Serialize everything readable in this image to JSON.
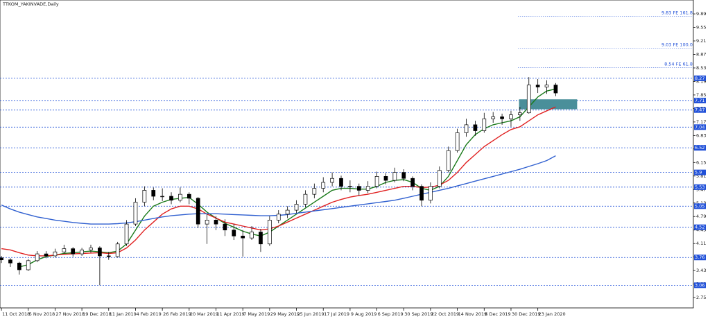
{
  "chart_data": {
    "type": "candlestick",
    "title": "TTKOM_YAKINVADE,Daily",
    "xlim": [
      -0.16,
      77.4
    ],
    "ylim": [
      2.49,
      10.24
    ],
    "xticks": [
      {
        "value": 0,
        "label": "11 Oct 2018"
      },
      {
        "value": 3,
        "label": "5 Nov 2018"
      },
      {
        "value": 6,
        "label": "27 Nov 2018"
      },
      {
        "value": 9,
        "label": "19 Dec 2018"
      },
      {
        "value": 12,
        "label": "11 Jan 2019"
      },
      {
        "value": 15,
        "label": "4 Feb 2019"
      },
      {
        "value": 18,
        "label": "26 Feb 2019"
      },
      {
        "value": 21,
        "label": "20 Mar 2019"
      },
      {
        "value": 24,
        "label": "11 Apr 2019"
      },
      {
        "value": 27,
        "label": "7 May 2019"
      },
      {
        "value": 30,
        "label": "29 May 2019"
      },
      {
        "value": 33,
        "label": "25 Jun 2019"
      },
      {
        "value": 36,
        "label": "17 Jul 2019"
      },
      {
        "value": 39,
        "label": "9 Aug 2019"
      },
      {
        "value": 42,
        "label": "6 Sep 2019"
      },
      {
        "value": 45,
        "label": "30 Sep 2019"
      },
      {
        "value": 48,
        "label": "22 Oct 2019"
      },
      {
        "value": 51,
        "label": "14 Nov 2019"
      },
      {
        "value": 54,
        "label": "6 Dec 2019"
      },
      {
        "value": 57,
        "label": "30 Dec 2019"
      },
      {
        "value": 60,
        "label": "23 Jan 2020"
      }
    ],
    "yticks": [
      2.75,
      3.09,
      3.43,
      3.77,
      4.11,
      4.45,
      4.79,
      5.13,
      5.47,
      5.81,
      6.15,
      6.49,
      6.83,
      7.17,
      7.51,
      7.85,
      8.19,
      8.53,
      8.87,
      9.21,
      9.55,
      9.89
    ],
    "candles": [
      [
        3.75,
        3.8,
        3.62,
        3.7
      ],
      [
        3.7,
        3.74,
        3.52,
        3.62
      ],
      [
        3.62,
        3.65,
        3.33,
        3.45
      ],
      [
        3.45,
        3.72,
        3.42,
        3.68
      ],
      [
        3.68,
        3.92,
        3.64,
        3.85
      ],
      [
        3.85,
        3.92,
        3.74,
        3.8
      ],
      [
        3.8,
        3.98,
        3.76,
        3.9
      ],
      [
        3.9,
        4.08,
        3.86,
        3.98
      ],
      [
        3.98,
        4.02,
        3.78,
        3.85
      ],
      [
        3.85,
        4.0,
        3.8,
        3.95
      ],
      [
        3.95,
        4.08,
        3.88,
        4.0
      ],
      [
        4.0,
        4.04,
        3.06,
        3.8
      ],
      [
        3.8,
        3.9,
        3.7,
        3.78
      ],
      [
        3.78,
        4.15,
        3.76,
        4.1
      ],
      [
        4.1,
        4.7,
        4.05,
        4.6
      ],
      [
        4.6,
        5.25,
        4.55,
        5.15
      ],
      [
        5.15,
        5.55,
        5.05,
        5.45
      ],
      [
        5.45,
        5.52,
        5.2,
        5.3
      ],
      [
        5.3,
        5.5,
        5.18,
        5.3
      ],
      [
        5.3,
        5.4,
        5.1,
        5.2
      ],
      [
        5.2,
        5.52,
        5.15,
        5.35
      ],
      [
        5.35,
        5.4,
        5.1,
        5.25
      ],
      [
        5.25,
        5.28,
        4.5,
        4.6
      ],
      [
        4.6,
        4.85,
        4.1,
        4.7
      ],
      [
        4.7,
        4.8,
        4.45,
        4.6
      ],
      [
        4.6,
        4.72,
        4.3,
        4.45
      ],
      [
        4.45,
        4.6,
        4.2,
        4.3
      ],
      [
        4.3,
        4.45,
        3.78,
        4.25
      ],
      [
        4.25,
        4.55,
        4.2,
        4.4
      ],
      [
        4.4,
        4.48,
        3.9,
        4.1
      ],
      [
        4.1,
        4.8,
        4.05,
        4.7
      ],
      [
        4.7,
        4.95,
        4.62,
        4.85
      ],
      [
        4.85,
        5.05,
        4.75,
        4.95
      ],
      [
        4.95,
        5.2,
        4.88,
        5.1
      ],
      [
        5.1,
        5.45,
        5.02,
        5.35
      ],
      [
        5.35,
        5.62,
        5.25,
        5.5
      ],
      [
        5.5,
        5.78,
        5.4,
        5.65
      ],
      [
        5.65,
        5.9,
        5.55,
        5.75
      ],
      [
        5.75,
        5.82,
        5.45,
        5.55
      ],
      [
        5.55,
        5.7,
        5.4,
        5.55
      ],
      [
        5.55,
        5.62,
        5.32,
        5.45
      ],
      [
        5.45,
        5.68,
        5.38,
        5.55
      ],
      [
        5.55,
        5.92,
        5.5,
        5.8
      ],
      [
        5.8,
        5.88,
        5.6,
        5.7
      ],
      [
        5.7,
        6.02,
        5.65,
        5.9
      ],
      [
        5.9,
        5.98,
        5.68,
        5.75
      ],
      [
        5.75,
        5.8,
        5.45,
        5.55
      ],
      [
        5.55,
        5.6,
        5.05,
        5.2
      ],
      [
        5.2,
        5.65,
        5.12,
        5.55
      ],
      [
        5.55,
        6.05,
        5.5,
        5.95
      ],
      [
        5.95,
        6.55,
        5.9,
        6.45
      ],
      [
        6.45,
        7.0,
        6.4,
        6.9
      ],
      [
        6.9,
        7.25,
        6.8,
        7.1
      ],
      [
        7.1,
        7.2,
        6.82,
        6.95
      ],
      [
        6.95,
        7.4,
        6.9,
        7.25
      ],
      [
        7.25,
        7.42,
        7.15,
        7.3
      ],
      [
        7.3,
        7.38,
        7.1,
        7.25
      ],
      [
        7.25,
        7.45,
        7.05,
        7.35
      ],
      [
        7.35,
        7.55,
        7.2,
        7.4
      ],
      [
        7.4,
        8.3,
        7.38,
        8.1
      ],
      [
        8.1,
        8.25,
        7.9,
        8.05
      ],
      [
        8.05,
        8.22,
        7.88,
        8.1
      ],
      [
        8.1,
        8.15,
        7.82,
        7.9
      ]
    ],
    "series": [
      {
        "color": "#1a7a1a",
        "values": [
          null,
          null,
          3.52,
          3.58,
          3.7,
          3.78,
          3.82,
          3.86,
          3.88,
          3.9,
          3.92,
          3.9,
          3.88,
          3.92,
          4.1,
          4.45,
          4.8,
          5.05,
          5.15,
          5.22,
          5.25,
          5.27,
          5.1,
          4.9,
          4.75,
          4.62,
          4.52,
          4.42,
          4.35,
          4.3,
          4.4,
          4.55,
          4.7,
          4.85,
          5.0,
          5.15,
          5.3,
          5.45,
          5.5,
          5.5,
          5.48,
          5.48,
          5.55,
          5.65,
          5.7,
          5.72,
          5.65,
          5.5,
          5.45,
          5.55,
          5.8,
          6.2,
          6.6,
          6.85,
          7.0,
          7.1,
          7.15,
          7.2,
          7.3,
          7.55,
          7.8,
          7.95,
          8.0
        ]
      },
      {
        "color": "#e02020",
        "values": [
          3.98,
          3.95,
          3.88,
          3.82,
          3.8,
          3.8,
          3.82,
          3.84,
          3.85,
          3.86,
          3.87,
          3.88,
          3.86,
          3.88,
          4.0,
          4.2,
          4.45,
          4.65,
          4.85,
          4.98,
          5.05,
          5.05,
          4.98,
          4.85,
          4.75,
          4.65,
          4.6,
          4.55,
          4.5,
          4.45,
          4.48,
          4.55,
          4.65,
          4.75,
          4.85,
          4.95,
          5.05,
          5.15,
          5.22,
          5.28,
          5.32,
          5.35,
          5.4,
          5.45,
          5.5,
          5.55,
          5.55,
          5.52,
          5.53,
          5.58,
          5.7,
          5.9,
          6.15,
          6.35,
          6.55,
          6.7,
          6.85,
          6.98,
          7.05,
          7.2,
          7.35,
          7.45,
          7.55
        ]
      },
      {
        "color": "#3060d0",
        "values": [
          5.08,
          4.98,
          4.9,
          4.84,
          4.78,
          4.74,
          4.7,
          4.67,
          4.64,
          4.62,
          4.6,
          4.6,
          4.6,
          4.61,
          4.63,
          4.66,
          4.7,
          4.74,
          4.78,
          4.81,
          4.83,
          4.85,
          4.86,
          4.86,
          4.86,
          4.85,
          4.84,
          4.83,
          4.82,
          4.81,
          4.81,
          4.82,
          4.84,
          4.87,
          4.9,
          4.93,
          4.96,
          4.99,
          5.02,
          5.05,
          5.08,
          5.11,
          5.14,
          5.17,
          5.2,
          5.25,
          5.3,
          5.35,
          5.4,
          5.45,
          5.5,
          5.56,
          5.62,
          5.68,
          5.74,
          5.8,
          5.86,
          5.92,
          5.98,
          6.05,
          6.12,
          6.2,
          6.32
        ]
      }
    ],
    "levels": [
      8.27,
      7.71,
      7.47,
      7.04,
      6.52,
      5.9,
      5.53,
      5.05,
      4.52,
      3.76,
      3.06
    ],
    "level_color": "#2050d8",
    "fib_levels": [
      {
        "value": 9.83,
        "label": "9.83 FE 161.8"
      },
      {
        "value": 9.03,
        "label": "9.03 FE 100.0"
      },
      {
        "value": 8.54,
        "label": "8.54 FE 61.8"
      }
    ],
    "fib_start": 57.8,
    "zone": {
      "x": [
        57.9,
        64.4
      ],
      "y": [
        7.49,
        7.74
      ],
      "color": "#4a8f9a"
    }
  }
}
